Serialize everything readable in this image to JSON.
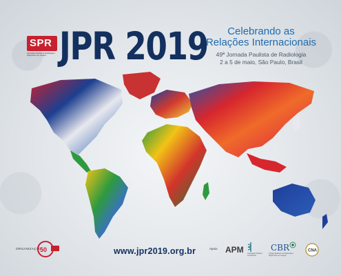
{
  "brand": {
    "logo_text": "SPR",
    "logo_sub": "Sociedade Paulista de Radiologia e Diagnóstico por Imagem"
  },
  "title": "JPR 2019",
  "headline": {
    "line1": "Celebrando as",
    "line2": "Relações Internacionais"
  },
  "subline": {
    "line1": "49ª Jornada Paulista de Radiologia",
    "line2": "2 a 5 de maio, São Paulo, Brasil"
  },
  "footer": {
    "org_label": "ORGANIZAÇÃO",
    "org_logo_text": "SPR",
    "website": "www.jpr2019.org.br",
    "apoio_label": "Apoio",
    "apm": "APM",
    "apm_sub": "Associação Paulista de Medicina",
    "cbr": "CBR",
    "cbr_sub": "Colégio Brasileiro de Radiologia e Diagnóstico por Imagem",
    "cna": "CNA"
  },
  "colors": {
    "navy": "#13305e",
    "blue": "#1f6bb0",
    "red": "#c8202f"
  }
}
